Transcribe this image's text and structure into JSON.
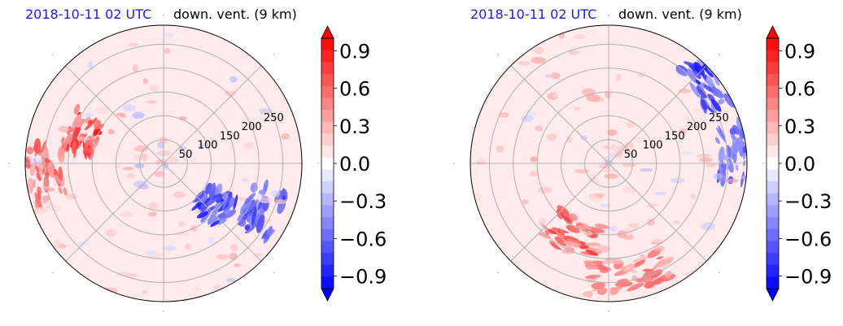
{
  "figures": [
    {
      "id": "left",
      "title_left": "2018-10-11 02 UTC",
      "title_right": "down. vent. (9 km)"
    },
    {
      "id": "right",
      "title_left": "2018-10-11 02 UTC",
      "title_right": "down. vent. (9 km)"
    }
  ],
  "chart_data": [
    {
      "type": "heatmap",
      "projection": "polar",
      "title_left": "2018-10-11 02 UTC",
      "title_right": "down. vent. (9 km)",
      "radial_tick_labels": [
        "50",
        "100",
        "150",
        "200",
        "250"
      ],
      "radial_ticks": [
        50,
        100,
        150,
        200,
        250
      ],
      "r_max": 290,
      "angular_gridline_step_deg": 45,
      "grid": true,
      "colorbar": {
        "min": -1.0,
        "max": 1.0,
        "ticks": [
          0.9,
          0.6,
          0.3,
          0.0,
          -0.3,
          -0.6,
          -0.9
        ],
        "tick_labels": [
          "0.9",
          "0.6",
          "0.3",
          "0.0",
          "−0.3",
          "−0.6",
          "−0.9"
        ],
        "extend": "both",
        "colormap": "bwr",
        "color_low": "#0000ff",
        "color_mid": "#ffffff",
        "color_high": "#ff0000"
      },
      "features": [
        {
          "kind": "positive-band",
          "theta_deg": 160,
          "r": 180,
          "value": 0.9
        },
        {
          "kind": "positive-band",
          "theta_deg": 185,
          "r": 250,
          "value": 0.7
        },
        {
          "kind": "negative-streaks",
          "theta_deg": 320,
          "r": 140,
          "value": -0.9
        },
        {
          "kind": "negative-streaks",
          "theta_deg": 335,
          "r": 230,
          "value": -0.8
        },
        {
          "kind": "weak-positive-background",
          "value": 0.1
        }
      ]
    },
    {
      "type": "heatmap",
      "projection": "polar",
      "title_left": "2018-10-11 02 UTC",
      "title_right": "down. vent. (9 km)",
      "radial_tick_labels": [
        "50",
        "100",
        "150",
        "200",
        "250"
      ],
      "radial_ticks": [
        50,
        100,
        150,
        200,
        250
      ],
      "r_max": 290,
      "angular_gridline_step_deg": 45,
      "grid": true,
      "colorbar": {
        "min": -1.0,
        "max": 1.0,
        "ticks": [
          0.9,
          0.6,
          0.3,
          0.0,
          -0.3,
          -0.6,
          -0.9
        ],
        "tick_labels": [
          "0.9",
          "0.6",
          "0.3",
          "0.0",
          "−0.3",
          "−0.6",
          "−0.9"
        ],
        "extend": "both",
        "colormap": "bwr",
        "color_low": "#0000ff",
        "color_mid": "#ffffff",
        "color_high": "#ff0000"
      },
      "features": [
        {
          "kind": "positive-arc",
          "theta_deg": 245,
          "r": 170,
          "value": 0.8
        },
        {
          "kind": "positive-arc",
          "theta_deg": 280,
          "r": 240,
          "value": 0.6
        },
        {
          "kind": "negative-band",
          "theta_deg": 40,
          "r": 270,
          "value": -0.9
        },
        {
          "kind": "negative-band",
          "theta_deg": 5,
          "r": 270,
          "value": -0.7
        },
        {
          "kind": "weak-positive-background",
          "value": 0.1
        }
      ]
    }
  ]
}
